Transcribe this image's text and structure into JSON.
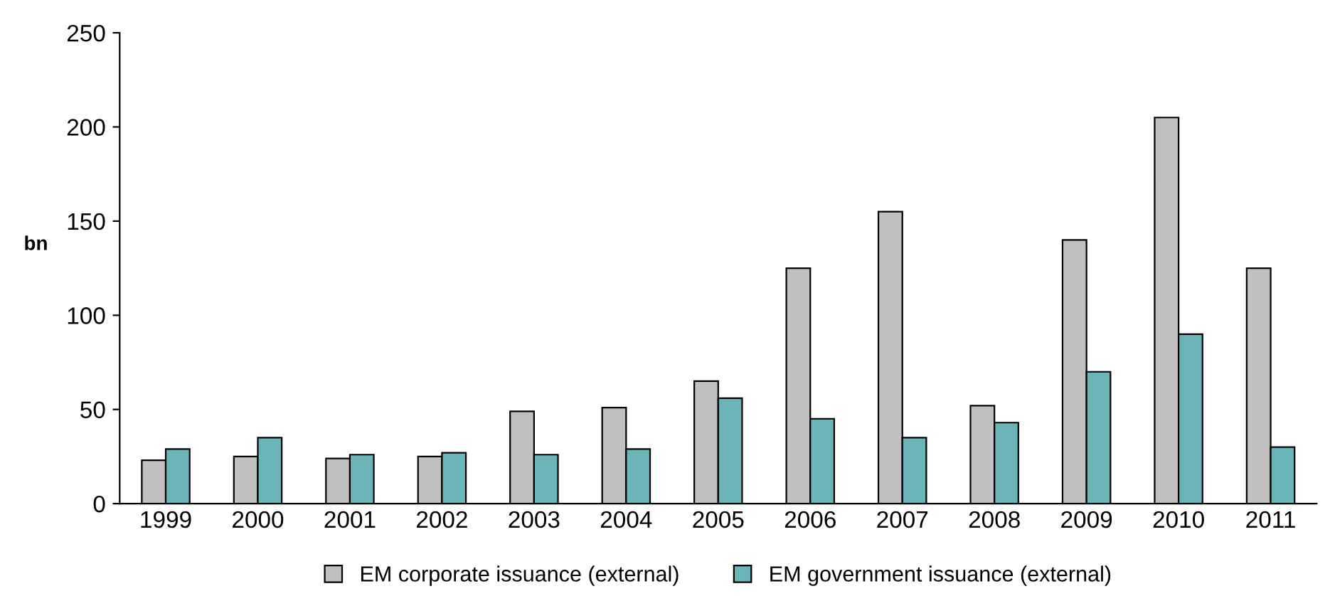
{
  "chart_data": {
    "type": "bar",
    "ylabel": "bn",
    "categories": [
      "1999",
      "2000",
      "2001",
      "2002",
      "2003",
      "2004",
      "2005",
      "2006",
      "2007",
      "2008",
      "2009",
      "2010",
      "2011"
    ],
    "series": [
      {
        "name": "EM corporate issuance (external)",
        "color": "#c0c0c0",
        "values": [
          23,
          25,
          24,
          25,
          49,
          51,
          65,
          125,
          155,
          52,
          140,
          205,
          125
        ]
      },
      {
        "name": "EM government issuance (external)",
        "color": "#6bb5b9",
        "values": [
          29,
          35,
          26,
          27,
          26,
          29,
          56,
          45,
          35,
          43,
          70,
          90,
          30
        ]
      }
    ],
    "ylim": [
      0,
      250
    ],
    "yticks": [
      0,
      50,
      100,
      150,
      200,
      250
    ],
    "grid": false,
    "legend": "bottom"
  }
}
